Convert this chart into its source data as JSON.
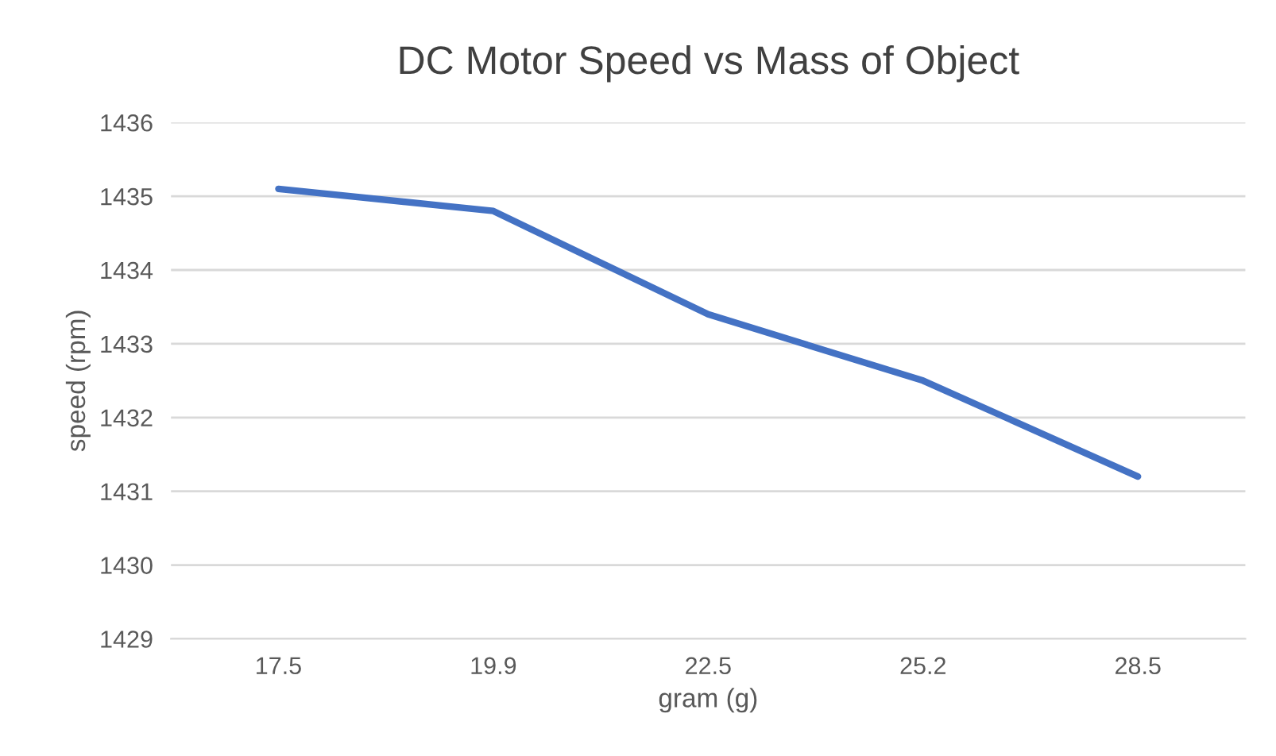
{
  "chart_data": {
    "type": "line",
    "title": "DC Motor Speed vs Mass of Object",
    "xlabel": "gram (g)",
    "ylabel": "speed (rpm)",
    "categories": [
      "17.5",
      "19.9",
      "22.5",
      "25.2",
      "28.5"
    ],
    "series": [
      {
        "color": "#4472c4",
        "values": [
          1435.1,
          1434.8,
          1433.4,
          1432.5,
          1431.2
        ]
      }
    ],
    "ylim": [
      1429,
      1436
    ],
    "yticks": [
      1429,
      1430,
      1431,
      1432,
      1433,
      1434,
      1435,
      1436
    ],
    "grid": "y"
  }
}
